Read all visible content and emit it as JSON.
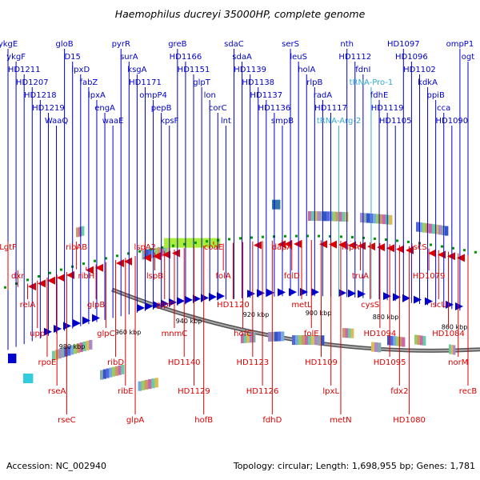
{
  "title": "Haemophilus ducreyi 35000HP, complete genome",
  "accession": "Accession: NC_002940",
  "summary": "Topology: circular; Length: 1,698,955 bp; Genes: 1,781",
  "scale_ticks": [
    "980 kbp",
    "960 kbp",
    "940 kbp",
    "920 kbp",
    "900 kbp",
    "880 kbp",
    "860 kbp"
  ],
  "colors": {
    "forward": "#0000cc",
    "reverse": "#dd0000",
    "rna": "#33aacc",
    "backbone": "#888888",
    "tick": "#009900"
  },
  "upper_labels": [
    {
      "text": "ykgE",
      "color": "forward"
    },
    {
      "text": "ykgF",
      "color": "forward"
    },
    {
      "text": "HD1211",
      "color": "forward"
    },
    {
      "text": "HD1207",
      "color": "forward"
    },
    {
      "text": "HD1218",
      "color": "forward"
    },
    {
      "text": "HD1219",
      "color": "forward"
    },
    {
      "text": "WaaQ",
      "color": "forward"
    },
    {
      "text": "gloB",
      "color": "forward"
    },
    {
      "text": "D15",
      "color": "forward"
    },
    {
      "text": "lpxD",
      "color": "forward"
    },
    {
      "text": "fabZ",
      "color": "forward"
    },
    {
      "text": "lpxA",
      "color": "forward"
    },
    {
      "text": "engA",
      "color": "forward"
    },
    {
      "text": "waaE",
      "color": "forward"
    },
    {
      "text": "pyrR",
      "color": "forward"
    },
    {
      "text": "surA",
      "color": "forward"
    },
    {
      "text": "ksgA",
      "color": "forward"
    },
    {
      "text": "HD1171",
      "color": "forward"
    },
    {
      "text": "ompP4",
      "color": "forward"
    },
    {
      "text": "pepB",
      "color": "forward"
    },
    {
      "text": "kpsF",
      "color": "forward"
    },
    {
      "text": "greB",
      "color": "forward"
    },
    {
      "text": "HD1166",
      "color": "forward"
    },
    {
      "text": "HD1151",
      "color": "forward"
    },
    {
      "text": "glpT",
      "color": "forward"
    },
    {
      "text": "lon",
      "color": "forward"
    },
    {
      "text": "corC",
      "color": "forward"
    },
    {
      "text": "lnt",
      "color": "forward"
    },
    {
      "text": "sdaC",
      "color": "forward"
    },
    {
      "text": "sdaA",
      "color": "forward"
    },
    {
      "text": "HD1139",
      "color": "forward"
    },
    {
      "text": "HD1138",
      "color": "forward"
    },
    {
      "text": "HD1137",
      "color": "forward"
    },
    {
      "text": "HD1136",
      "color": "forward"
    },
    {
      "text": "smpB",
      "color": "forward"
    },
    {
      "text": "serS",
      "color": "forward"
    },
    {
      "text": "leuS",
      "color": "forward"
    },
    {
      "text": "holA",
      "color": "forward"
    },
    {
      "text": "rlpB",
      "color": "forward"
    },
    {
      "text": "radA",
      "color": "forward"
    },
    {
      "text": "HD1117",
      "color": "forward"
    },
    {
      "text": "tRNA-Arg-2",
      "color": "rna"
    },
    {
      "text": "nth",
      "color": "forward"
    },
    {
      "text": "HD1112",
      "color": "forward"
    },
    {
      "text": "fdnI",
      "color": "forward"
    },
    {
      "text": "tRNA-Pro-1",
      "color": "rna"
    },
    {
      "text": "fdhE",
      "color": "forward"
    },
    {
      "text": "HD1119",
      "color": "forward"
    },
    {
      "text": "HD1105",
      "color": "forward"
    },
    {
      "text": "HD1097",
      "color": "forward"
    },
    {
      "text": "HD1096",
      "color": "forward"
    },
    {
      "text": "HD1102",
      "color": "forward"
    },
    {
      "text": "kdkA",
      "color": "forward"
    },
    {
      "text": "ppiB",
      "color": "forward"
    },
    {
      "text": "cca",
      "color": "forward"
    },
    {
      "text": "HD1090",
      "color": "forward"
    },
    {
      "text": "ompP1",
      "color": "forward"
    },
    {
      "text": "ogt",
      "color": "forward"
    }
  ],
  "lower_labels": [
    {
      "text": "LgtF",
      "color": "reverse"
    },
    {
      "text": "dxr",
      "color": "reverse"
    },
    {
      "text": "relA",
      "color": "reverse"
    },
    {
      "text": "upp",
      "color": "reverse"
    },
    {
      "text": "rpoE",
      "color": "reverse"
    },
    {
      "text": "rseA",
      "color": "reverse"
    },
    {
      "text": "rseC",
      "color": "reverse"
    },
    {
      "text": "ribAB",
      "color": "reverse"
    },
    {
      "text": "ribH",
      "color": "reverse"
    },
    {
      "text": "glpB",
      "color": "reverse"
    },
    {
      "text": "glpC",
      "color": "reverse"
    },
    {
      "text": "ribD",
      "color": "reverse"
    },
    {
      "text": "ribE",
      "color": "reverse"
    },
    {
      "text": "glpA",
      "color": "reverse"
    },
    {
      "text": "lspA2",
      "color": "reverse"
    },
    {
      "text": "lspB",
      "color": "reverse"
    },
    {
      "text": "glpF",
      "color": "reverse"
    },
    {
      "text": "mnmC",
      "color": "reverse"
    },
    {
      "text": "HD1140",
      "color": "reverse"
    },
    {
      "text": "HD1129",
      "color": "reverse"
    },
    {
      "text": "hofB",
      "color": "reverse"
    },
    {
      "text": "coaE",
      "color": "reverse"
    },
    {
      "text": "folA",
      "color": "reverse"
    },
    {
      "text": "HD1120",
      "color": "reverse"
    },
    {
      "text": "hofC",
      "color": "reverse"
    },
    {
      "text": "HD1123",
      "color": "reverse"
    },
    {
      "text": "HD1126",
      "color": "reverse"
    },
    {
      "text": "fdhD",
      "color": "reverse"
    },
    {
      "text": "dapA",
      "color": "reverse"
    },
    {
      "text": "folD",
      "color": "reverse"
    },
    {
      "text": "metL",
      "color": "reverse"
    },
    {
      "text": "folE",
      "color": "reverse"
    },
    {
      "text": "HD1109",
      "color": "reverse"
    },
    {
      "text": "lpxL",
      "color": "reverse"
    },
    {
      "text": "metN",
      "color": "reverse"
    },
    {
      "text": "hlpA",
      "color": "reverse"
    },
    {
      "text": "truA",
      "color": "reverse"
    },
    {
      "text": "cysS",
      "color": "reverse"
    },
    {
      "text": "HD1094",
      "color": "reverse"
    },
    {
      "text": "HD1095",
      "color": "reverse"
    },
    {
      "text": "fdx2",
      "color": "reverse"
    },
    {
      "text": "HD1080",
      "color": "reverse"
    },
    {
      "text": "iscS",
      "color": "reverse"
    },
    {
      "text": "HD1079",
      "color": "reverse"
    },
    {
      "text": "iscU",
      "color": "reverse"
    },
    {
      "text": "HD1084",
      "color": "reverse"
    },
    {
      "text": "norM",
      "color": "reverse"
    },
    {
      "text": "recB",
      "color": "reverse"
    }
  ]
}
